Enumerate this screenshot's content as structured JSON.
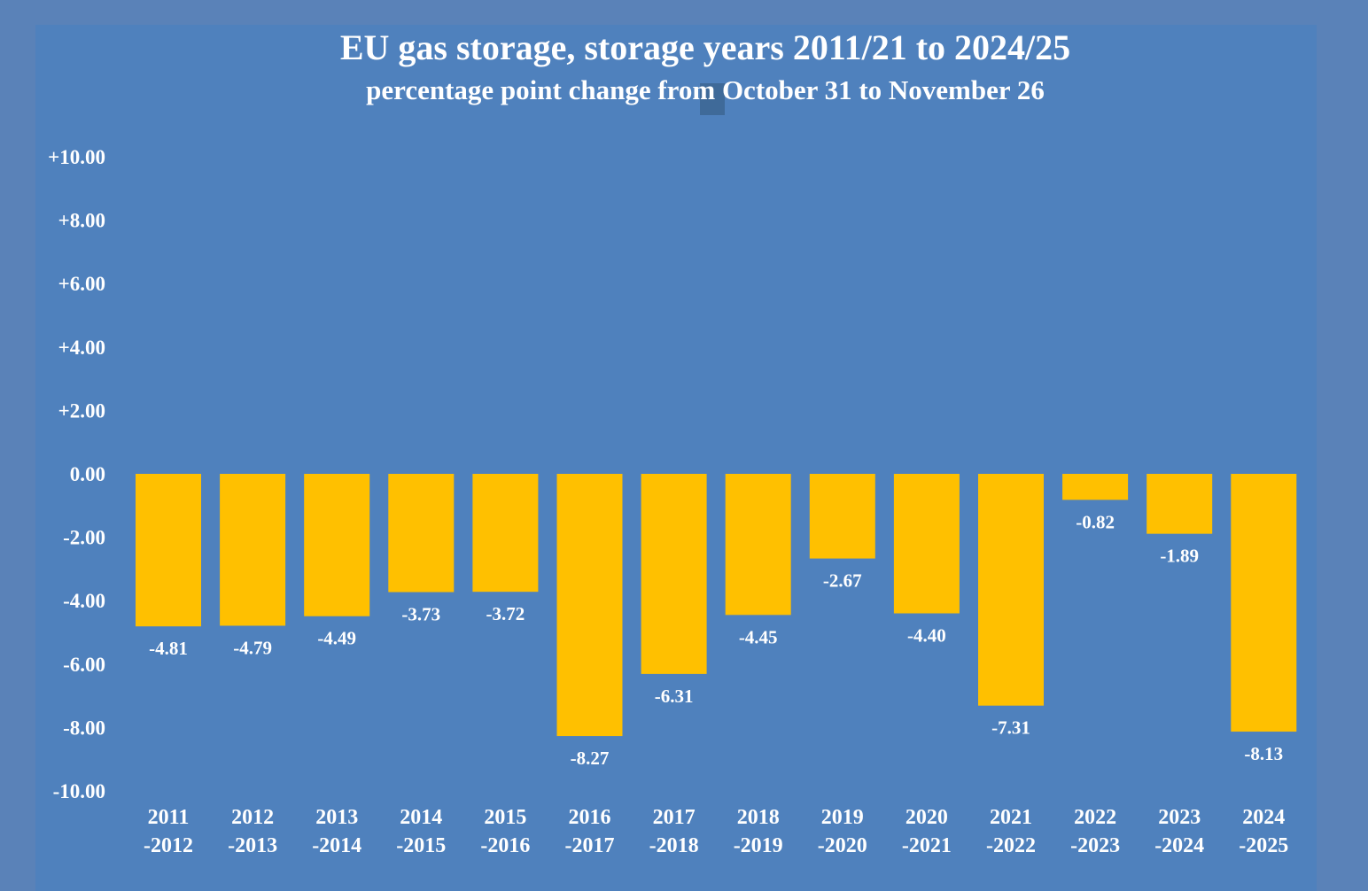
{
  "chart_data": {
    "type": "bar",
    "title": "EU gas storage, storage years 2011/21 to 2024/25",
    "subtitle": "percentage point change from October 31 to November 26",
    "xlabel": "",
    "ylabel": "",
    "ylim": [
      -10,
      10
    ],
    "yticks": [
      "+10.00",
      "+8.00",
      "+6.00",
      "+4.00",
      "+2.00",
      "0.00",
      "-2.00",
      "-4.00",
      "-6.00",
      "-8.00",
      "-10.00"
    ],
    "ytick_values": [
      10,
      8,
      6,
      4,
      2,
      0,
      -2,
      -4,
      -6,
      -8,
      -10
    ],
    "categories": [
      [
        "2011",
        "-2012"
      ],
      [
        "2012",
        "-2013"
      ],
      [
        "2013",
        "-2014"
      ],
      [
        "2014",
        "-2015"
      ],
      [
        "2015",
        "-2016"
      ],
      [
        "2016",
        "-2017"
      ],
      [
        "2017",
        "-2018"
      ],
      [
        "2018",
        "-2019"
      ],
      [
        "2019",
        "-2020"
      ],
      [
        "2020",
        "-2021"
      ],
      [
        "2021",
        "-2022"
      ],
      [
        "2022",
        "-2023"
      ],
      [
        "2023",
        "-2024"
      ],
      [
        "2024",
        "-2025"
      ]
    ],
    "values": [
      -4.81,
      -4.79,
      -4.49,
      -3.73,
      -3.72,
      -8.27,
      -6.31,
      -4.45,
      -2.67,
      -4.4,
      -7.31,
      -0.82,
      -1.89,
      -8.13
    ],
    "value_labels": [
      "-4.81",
      "-4.79",
      "-4.49",
      "-3.73",
      "-3.72",
      "-8.27",
      "-6.31",
      "-4.45",
      "-2.67",
      "-4.40",
      "-7.31",
      "-0.82",
      "-1.89",
      "-8.13"
    ],
    "grid": false,
    "colors": {
      "bar": "#ffc000",
      "background": "#4f81bd",
      "outer": "#5a82b8",
      "text": "#ffffff"
    }
  }
}
